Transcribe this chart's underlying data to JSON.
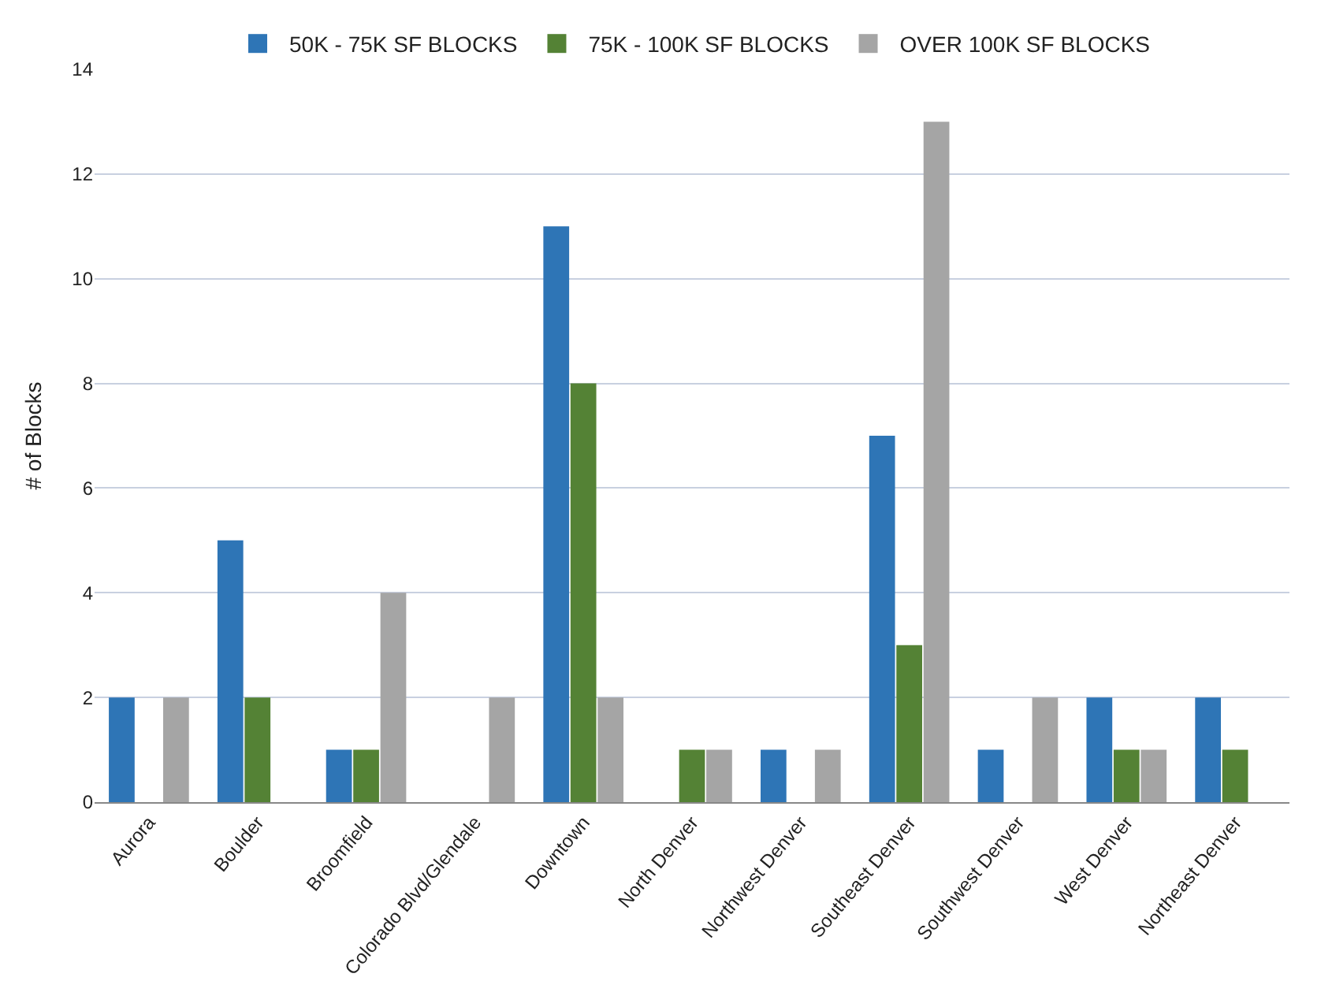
{
  "chart_data": {
    "type": "bar",
    "ylabel": "# of Blocks",
    "categories": [
      "Aurora",
      "Boulder",
      "Broomfield",
      "Colorado Blvd/Glendale",
      "Downtown",
      "North Denver",
      "Northwest Denver",
      "Southeast Denver",
      "Southwest Denver",
      "West Denver",
      "Northeast Denver"
    ],
    "series": [
      {
        "name": "50K - 75K SF BLOCKS",
        "color": "#2e75b6",
        "values": [
          2,
          5,
          1,
          0,
          11,
          0,
          1,
          7,
          1,
          2,
          2
        ]
      },
      {
        "name": "75K - 100K SF BLOCKS",
        "color": "#548235",
        "values": [
          0,
          2,
          1,
          0,
          8,
          1,
          0,
          3,
          0,
          1,
          1
        ]
      },
      {
        "name": "OVER 100K SF BLOCKS",
        "color": "#a5a5a5",
        "values": [
          2,
          0,
          4,
          2,
          2,
          1,
          1,
          13,
          2,
          1,
          0
        ]
      }
    ],
    "ylim": [
      0,
      14
    ],
    "yticks": [
      0,
      2,
      4,
      6,
      8,
      10,
      12,
      14
    ],
    "grid": "y",
    "legend": "top"
  }
}
